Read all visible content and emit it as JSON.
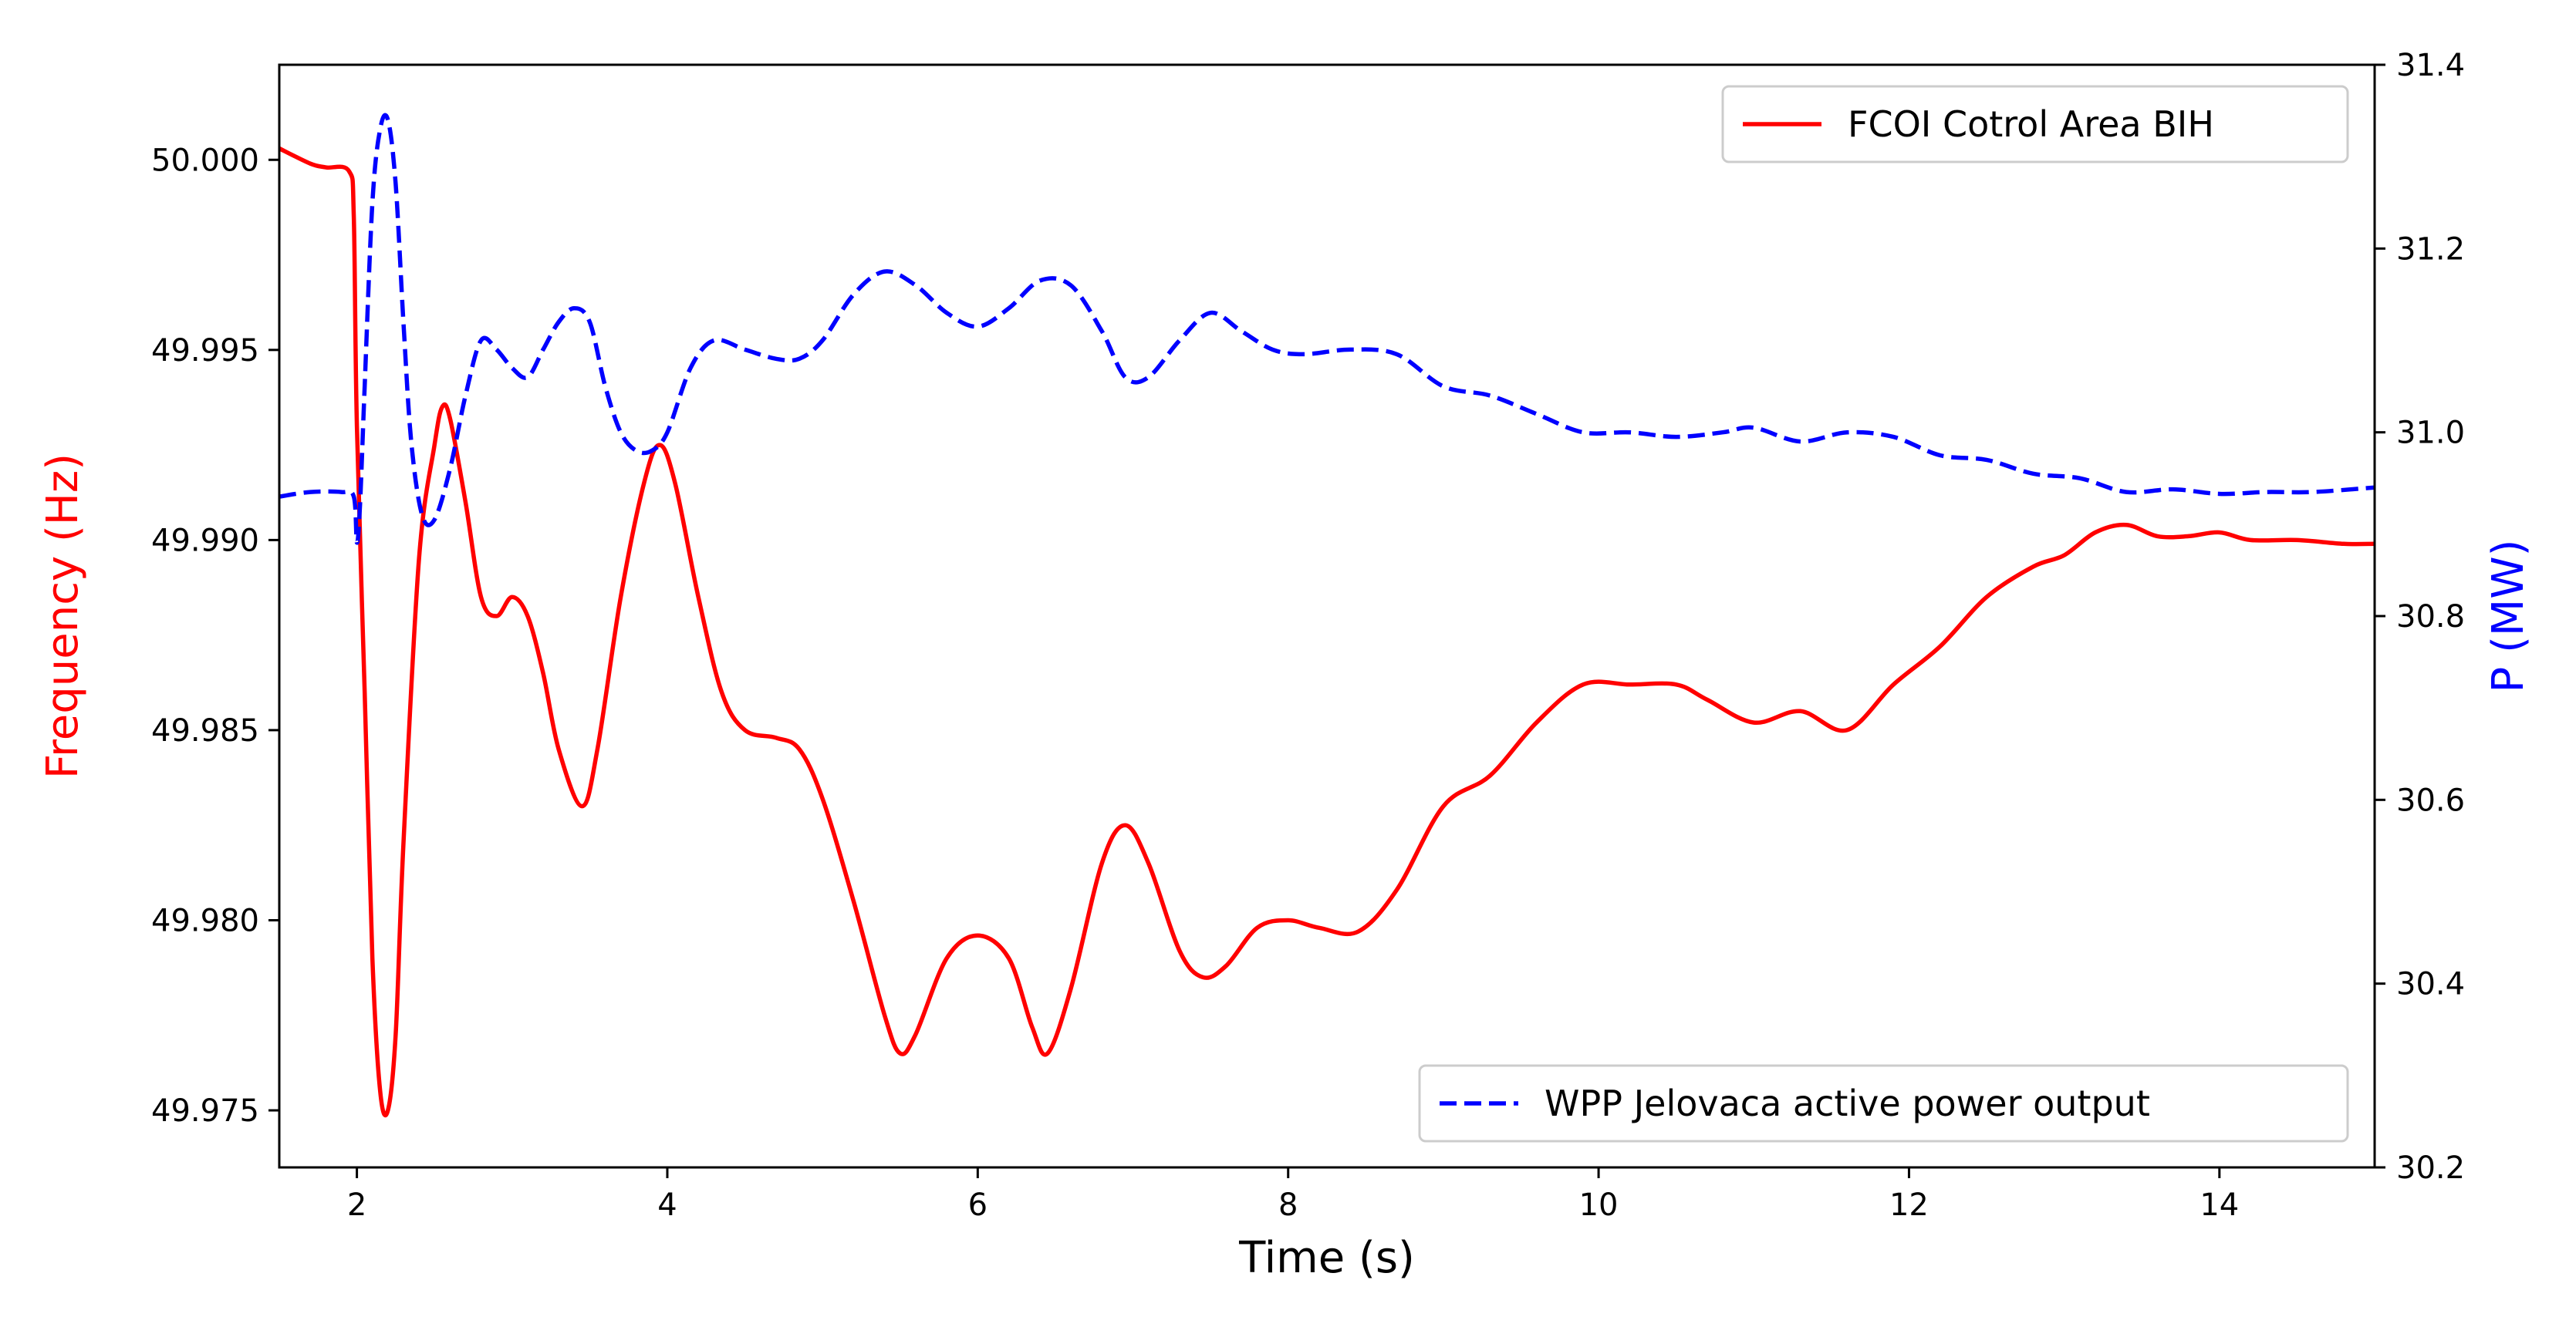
{
  "chart_data": {
    "type": "line",
    "xlabel": "Time (s)",
    "ylabel_left": "Frequency (Hz)",
    "ylabel_right": "P (MW)",
    "xlim": [
      1.5,
      15
    ],
    "ylim_left": [
      49.9735,
      50.0025
    ],
    "ylim_right": [
      30.2,
      31.4
    ],
    "x_ticks": [
      2,
      4,
      6,
      8,
      10,
      12,
      14
    ],
    "x_tick_labels": [
      "2",
      "4",
      "6",
      "8",
      "10",
      "12",
      "14"
    ],
    "y_left_ticks": [
      49.975,
      49.98,
      49.985,
      49.99,
      49.995,
      50.0
    ],
    "y_left_tick_labels": [
      "49.975",
      "49.980",
      "49.985",
      "49.990",
      "49.995",
      "50.000"
    ],
    "y_right_ticks": [
      30.2,
      30.4,
      30.6,
      30.8,
      31.0,
      31.2,
      31.4
    ],
    "y_right_tick_labels": [
      "30.2",
      "30.4",
      "30.6",
      "30.8",
      "31.0",
      "31.2",
      "31.4"
    ],
    "grid": false,
    "legend_left_series": {
      "label": "FCOI Cotrol Area BIH",
      "position": "top-right"
    },
    "legend_right_series": {
      "label": "WPP Jelovaca active power output",
      "position": "bottom-right"
    },
    "series": [
      {
        "name": "FCOI Cotrol Area BIH",
        "axis": "left",
        "color": "#ff0000",
        "style": "solid",
        "x": [
          1.5,
          1.7,
          1.8,
          1.95,
          1.98,
          2.0,
          2.05,
          2.1,
          2.15,
          2.2,
          2.25,
          2.3,
          2.4,
          2.5,
          2.55,
          2.6,
          2.7,
          2.8,
          2.9,
          3.0,
          3.1,
          3.2,
          3.3,
          3.45,
          3.55,
          3.7,
          3.85,
          3.95,
          4.05,
          4.2,
          4.35,
          4.5,
          4.7,
          4.85,
          5.0,
          5.2,
          5.4,
          5.5,
          5.6,
          5.8,
          6.0,
          6.2,
          6.35,
          6.45,
          6.6,
          6.8,
          6.95,
          7.1,
          7.3,
          7.45,
          7.6,
          7.8,
          8.0,
          8.2,
          8.45,
          8.7,
          9.0,
          9.3,
          9.6,
          9.9,
          10.2,
          10.5,
          10.7,
          11.0,
          11.3,
          11.6,
          11.9,
          12.2,
          12.5,
          12.8,
          13.0,
          13.2,
          13.4,
          13.6,
          13.8,
          14.0,
          14.2,
          14.5,
          14.8,
          15.0
        ],
        "y": [
          50.0003,
          49.9999,
          49.9998,
          49.9997,
          49.9985,
          49.993,
          49.986,
          49.979,
          49.9755,
          49.975,
          49.977,
          49.982,
          49.9895,
          49.9925,
          49.9935,
          49.9932,
          49.991,
          49.9885,
          49.988,
          49.9885,
          49.988,
          49.9865,
          49.9845,
          49.983,
          49.9845,
          49.9885,
          49.9915,
          49.9925,
          49.9915,
          49.9885,
          49.986,
          49.985,
          49.9848,
          49.9845,
          49.9832,
          49.9805,
          49.9775,
          49.9765,
          49.977,
          49.979,
          49.9796,
          49.979,
          49.9772,
          49.9765,
          49.9782,
          49.9815,
          49.9825,
          49.9815,
          49.9792,
          49.9785,
          49.9788,
          49.9798,
          49.98,
          49.9798,
          49.9797,
          49.9808,
          49.983,
          49.9838,
          49.9852,
          49.9862,
          49.9862,
          49.9862,
          49.9858,
          49.9852,
          49.9855,
          49.985,
          49.9862,
          49.9872,
          49.9885,
          49.9893,
          49.9896,
          49.9902,
          49.9904,
          49.9901,
          49.9901,
          49.9902,
          49.99,
          49.99,
          49.9899,
          49.9899
        ]
      },
      {
        "name": "WPP Jelovaca active power output",
        "axis": "right",
        "color": "#0000ff",
        "style": "dashed",
        "x": [
          1.5,
          1.7,
          1.9,
          1.98,
          2.0,
          2.02,
          2.05,
          2.1,
          2.15,
          2.2,
          2.25,
          2.3,
          2.35,
          2.42,
          2.5,
          2.6,
          2.7,
          2.8,
          2.9,
          3.0,
          3.1,
          3.2,
          3.3,
          3.4,
          3.5,
          3.6,
          3.7,
          3.8,
          3.9,
          4.0,
          4.15,
          4.3,
          4.5,
          4.7,
          4.85,
          5.0,
          5.2,
          5.4,
          5.6,
          5.8,
          6.0,
          6.2,
          6.4,
          6.6,
          6.8,
          6.95,
          7.1,
          7.3,
          7.5,
          7.7,
          7.9,
          8.1,
          8.4,
          8.7,
          9.0,
          9.3,
          9.6,
          9.9,
          10.2,
          10.5,
          10.8,
          11.0,
          11.3,
          11.6,
          11.9,
          12.2,
          12.5,
          12.8,
          13.1,
          13.4,
          13.7,
          14.0,
          14.3,
          14.6,
          15.0
        ],
        "y": [
          30.93,
          30.935,
          30.935,
          30.93,
          30.88,
          30.92,
          31.05,
          31.25,
          31.33,
          31.34,
          31.27,
          31.12,
          30.99,
          30.91,
          30.905,
          30.96,
          31.04,
          31.1,
          31.09,
          31.07,
          31.06,
          31.09,
          31.12,
          31.135,
          31.12,
          31.05,
          31.0,
          30.98,
          30.98,
          31.0,
          31.07,
          31.1,
          31.09,
          31.08,
          31.08,
          31.1,
          31.15,
          31.175,
          31.16,
          31.13,
          31.115,
          31.135,
          31.165,
          31.16,
          31.11,
          31.06,
          31.06,
          31.1,
          31.13,
          31.11,
          31.09,
          31.085,
          31.09,
          31.085,
          31.05,
          31.04,
          31.02,
          31.0,
          31.0,
          30.995,
          31.0,
          31.005,
          30.99,
          31.0,
          30.995,
          30.975,
          30.97,
          30.955,
          30.95,
          30.935,
          30.938,
          30.933,
          30.935,
          30.935,
          30.94
        ]
      }
    ]
  }
}
